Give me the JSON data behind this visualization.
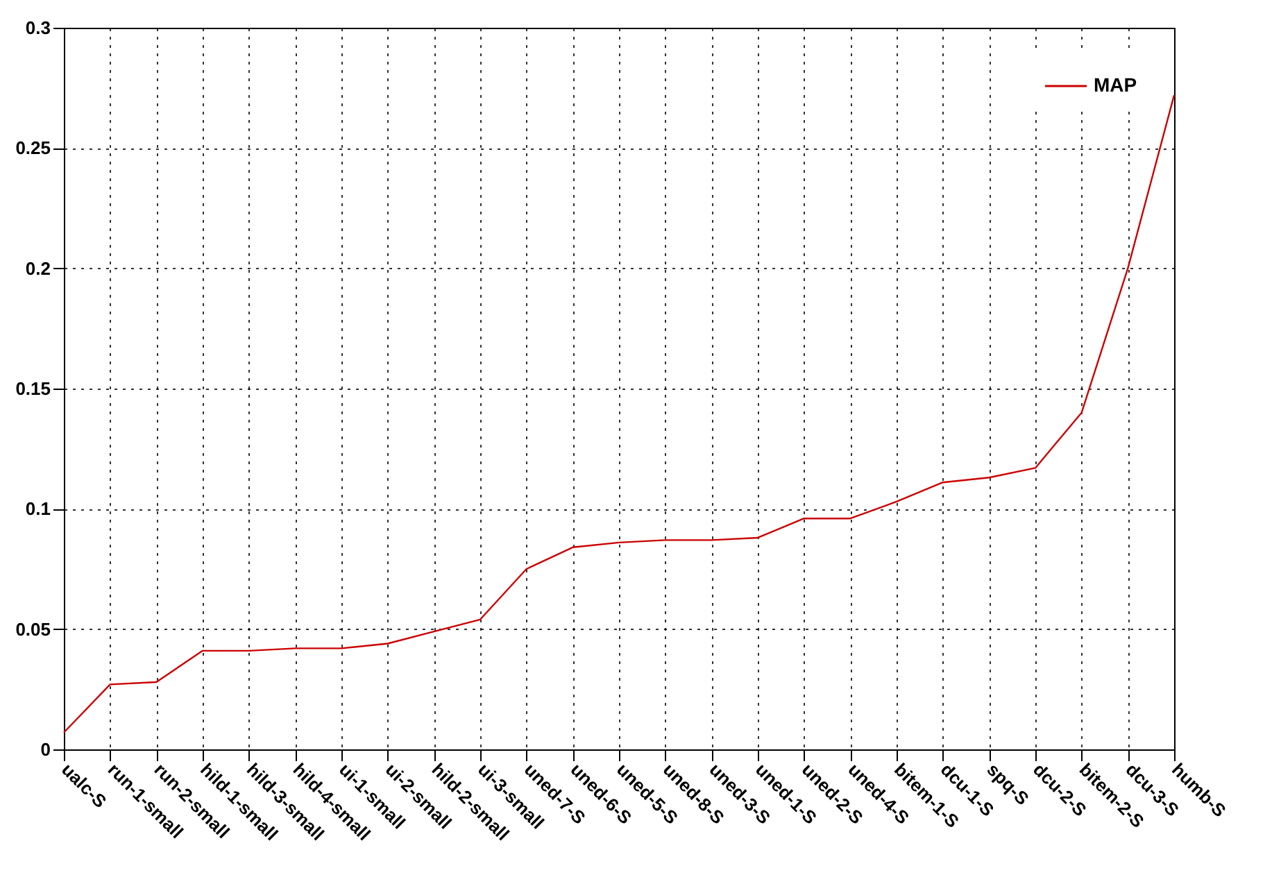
{
  "chart_data": {
    "type": "line",
    "categories": [
      "ualc-S",
      "run-1-small",
      "run-2-small",
      "hild-1-small",
      "hild-3-small",
      "hild-4-small",
      "ui-1-small",
      "ui-2-small",
      "hild-2-small",
      "ui-3-small",
      "uned-7-S",
      "uned-6-S",
      "uned-5-S",
      "uned-8-S",
      "uned-3-S",
      "uned-1-S",
      "uned-2-S",
      "uned-4-S",
      "bitem-1-S",
      "dcu-1-S",
      "spq-S",
      "dcu-2-S",
      "bitem-2-S",
      "dcu-3-S",
      "humb-S"
    ],
    "series": [
      {
        "name": "MAP",
        "color": "#cc0000",
        "values": [
          0.007,
          0.027,
          0.028,
          0.041,
          0.041,
          0.042,
          0.042,
          0.044,
          0.049,
          0.054,
          0.075,
          0.084,
          0.086,
          0.087,
          0.087,
          0.088,
          0.096,
          0.096,
          0.103,
          0.111,
          0.113,
          0.117,
          0.14,
          0.2,
          0.272
        ]
      }
    ],
    "ylim": [
      0,
      0.3
    ],
    "yticks": [
      {
        "value": 0,
        "label": "0"
      },
      0.05,
      0.1,
      0.15,
      0.2,
      0.25,
      0.3
    ],
    "grid": true,
    "legend": "top right",
    "marker": "none",
    "line_style": "solid"
  }
}
